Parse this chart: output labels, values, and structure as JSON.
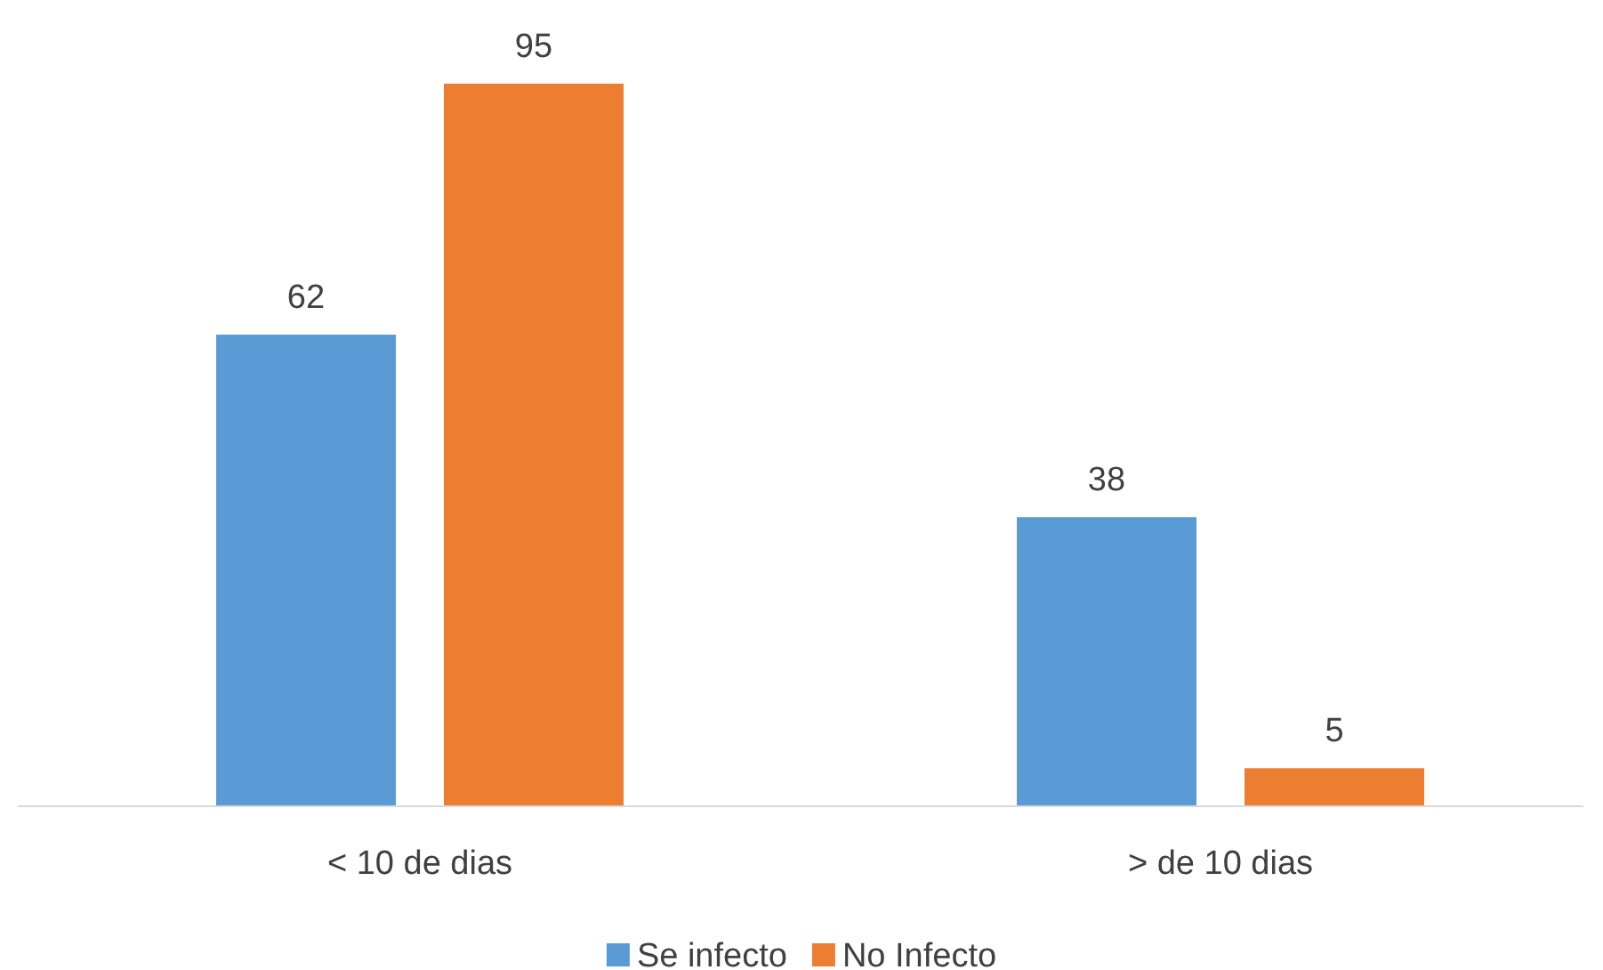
{
  "chart_data": {
    "type": "bar",
    "categories": [
      "< 10 de dias",
      "> de 10 dias"
    ],
    "series": [
      {
        "name": "Se infecto",
        "color": "#5b9bd5",
        "values": [
          62,
          38
        ]
      },
      {
        "name": "No Infecto",
        "color": "#ed7d31",
        "values": [
          95,
          5
        ]
      }
    ],
    "data_labels": true,
    "legend": "bottom",
    "grid": false
  }
}
